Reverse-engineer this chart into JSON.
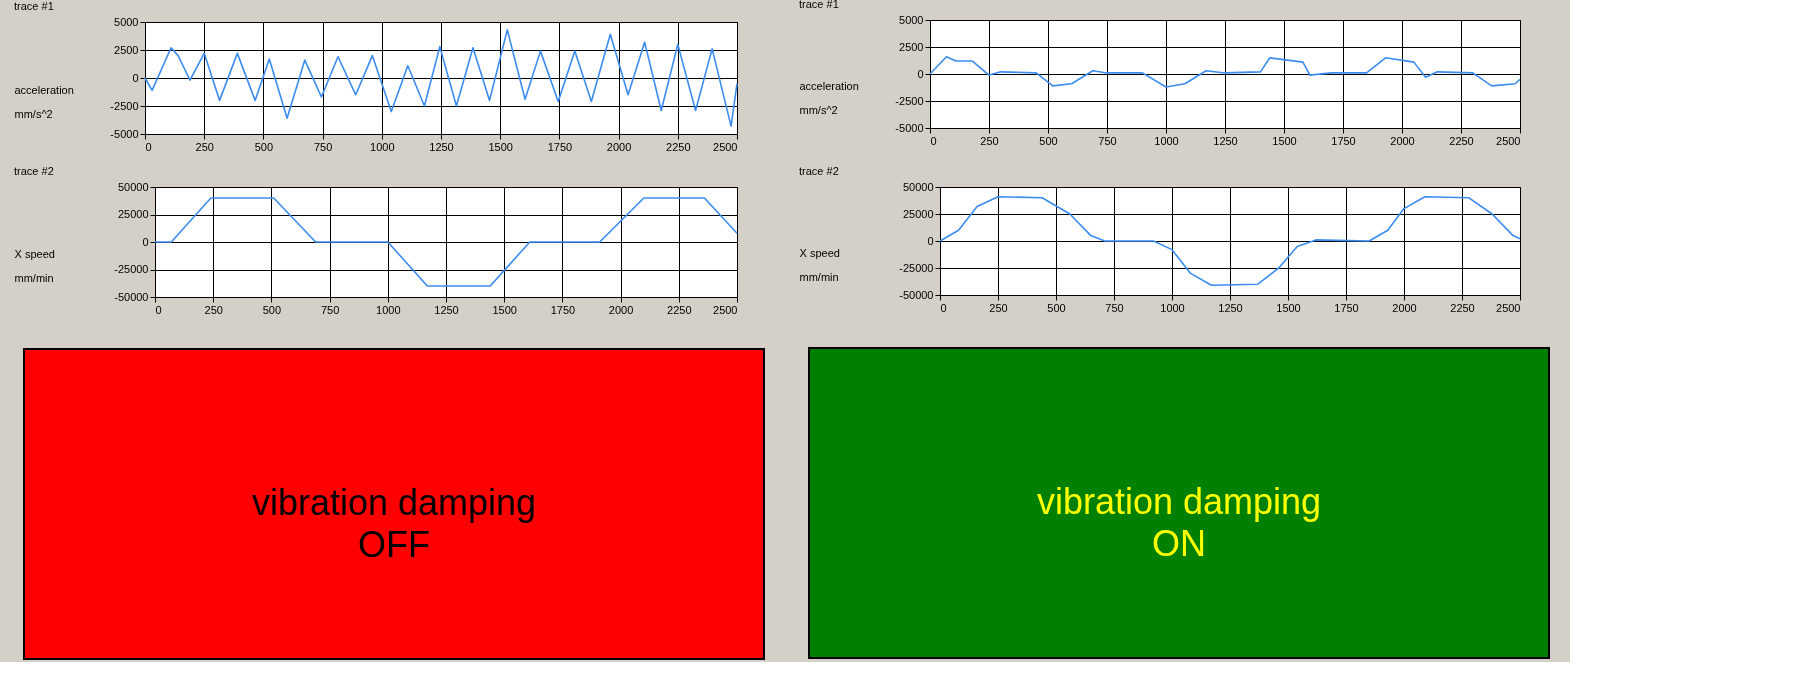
{
  "chart_data": [
    {
      "type": "line",
      "title": "trace #1",
      "ylabel": "acceleration\nmm/s^2",
      "xlim": [
        0,
        2500
      ],
      "xticks": [
        0,
        250,
        500,
        750,
        1000,
        1250,
        1500,
        1750,
        2000,
        2250,
        2500
      ],
      "ylim": [
        -5000,
        5000
      ],
      "yticks": [
        -5000,
        -2500,
        0,
        2500,
        5000
      ],
      "grid": true,
      "legend": false,
      "series": [
        {
          "color": "#3c8cf0",
          "x": [
            0,
            30,
            110,
            140,
            190,
            250,
            315,
            390,
            465,
            525,
            600,
            675,
            745,
            815,
            890,
            960,
            1040,
            1110,
            1180,
            1245,
            1315,
            1385,
            1455,
            1530,
            1605,
            1670,
            1745,
            1815,
            1885,
            1965,
            2040,
            2110,
            2180,
            2250,
            2325,
            2395,
            2475,
            2500
          ],
          "values": [
            0,
            -1100,
            2700,
            2000,
            -200,
            2200,
            -2000,
            2200,
            -2000,
            1700,
            -3600,
            1600,
            -1700,
            1900,
            -1500,
            2000,
            -3000,
            1100,
            -2500,
            2800,
            -2500,
            2700,
            -2000,
            4300,
            -1900,
            2400,
            -2100,
            2400,
            -2100,
            3900,
            -1500,
            3200,
            -2900,
            3000,
            -2900,
            2600,
            -4300,
            -500
          ]
        }
      ]
    },
    {
      "type": "line",
      "title": "trace #2",
      "ylabel": "X speed\nmm/min",
      "xlim": [
        0,
        2500
      ],
      "xticks": [
        0,
        250,
        500,
        750,
        1000,
        1250,
        1500,
        1750,
        2000,
        2250,
        2500
      ],
      "ylim": [
        -50000,
        50000
      ],
      "yticks": [
        -50000,
        -25000,
        0,
        25000,
        50000
      ],
      "grid": true,
      "legend": false,
      "series": [
        {
          "color": "#3c8cf0",
          "x": [
            0,
            70,
            240,
            510,
            690,
            1000,
            1170,
            1440,
            1610,
            1910,
            2100,
            2360,
            2500
          ],
          "values": [
            0,
            0,
            40000,
            40000,
            0,
            0,
            -40000,
            -40000,
            0,
            0,
            40000,
            40000,
            8000
          ]
        }
      ]
    },
    {
      "type": "line",
      "title": "trace #1",
      "ylabel": "acceleration\nmm/s^2",
      "xlim": [
        0,
        2500
      ],
      "xticks": [
        0,
        250,
        500,
        750,
        1000,
        1250,
        1500,
        1750,
        2000,
        2250,
        2500
      ],
      "ylim": [
        -5000,
        5000
      ],
      "yticks": [
        -5000,
        -2500,
        0,
        2500,
        5000
      ],
      "grid": true,
      "legend": false,
      "series": [
        {
          "color": "#3c8cf0",
          "x": [
            0,
            70,
            110,
            180,
            250,
            300,
            450,
            520,
            600,
            690,
            750,
            900,
            1000,
            1080,
            1170,
            1250,
            1400,
            1440,
            1580,
            1610,
            1700,
            1850,
            1930,
            2050,
            2100,
            2150,
            2300,
            2380,
            2480,
            2500
          ],
          "values": [
            0,
            1600,
            1200,
            1200,
            -100,
            200,
            100,
            -1100,
            -900,
            300,
            100,
            100,
            -1200,
            -900,
            300,
            100,
            200,
            1500,
            1100,
            -100,
            100,
            100,
            1500,
            1100,
            -300,
            200,
            100,
            -1100,
            -900,
            -500
          ]
        }
      ]
    },
    {
      "type": "line",
      "title": "trace #2",
      "ylabel": "X speed\nmm/min",
      "xlim": [
        0,
        2500
      ],
      "xticks": [
        0,
        250,
        500,
        750,
        1000,
        1250,
        1500,
        1750,
        2000,
        2250,
        2500
      ],
      "ylim": [
        -50000,
        50000
      ],
      "yticks": [
        -50000,
        -25000,
        0,
        25000,
        50000
      ],
      "grid": true,
      "legend": false,
      "series": [
        {
          "color": "#3c8cf0",
          "x": [
            0,
            80,
            160,
            250,
            440,
            560,
            650,
            710,
            750,
            920,
            1000,
            1080,
            1170,
            1370,
            1460,
            1540,
            1620,
            1850,
            1930,
            2000,
            2090,
            2280,
            2380,
            2470,
            2500
          ],
          "values": [
            0,
            10000,
            32000,
            41000,
            40000,
            25000,
            5000,
            0,
            0,
            0,
            -8000,
            -30000,
            -41000,
            -40000,
            -25000,
            -5000,
            1000,
            0,
            10000,
            30000,
            41000,
            40000,
            25000,
            5000,
            2000
          ]
        }
      ]
    },
    {
      "type": "other",
      "title": "vibration damping\nOFF",
      "color": "#000000",
      "colors": [
        "#ff0000"
      ]
    },
    {
      "type": "other",
      "title": "vibration damping\nON",
      "color": "#ffff00",
      "colors": [
        "#008000"
      ]
    }
  ]
}
